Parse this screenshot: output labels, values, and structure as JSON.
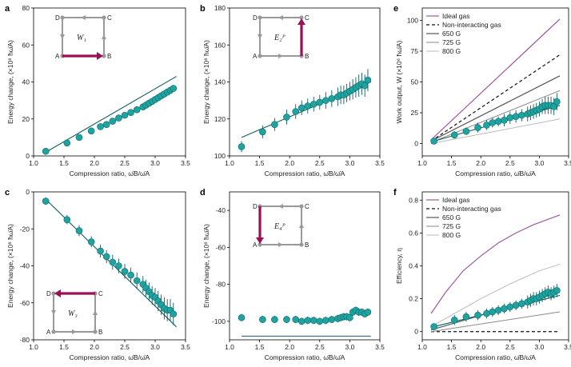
{
  "colors": {
    "marker": "#1fa3a0",
    "markerEdge": "#0e6b69",
    "fit": "#0c5e60",
    "ideal": "#9b5b9e",
    "accent": "#9e0e55",
    "cycle": "#999999"
  },
  "chart_data": [
    {
      "type": "scatter",
      "panel": "a",
      "xlabel": "Compression ratio, ω̄B/ω̄A",
      "ylabel": "Energy change, (×10⁶ ħω̄A)",
      "xlim": [
        1.0,
        3.5
      ],
      "ylim": [
        0,
        80
      ],
      "xticks": [
        "1.0",
        "1.5",
        "2.0",
        "2.5",
        "3.0",
        "3.5"
      ],
      "yticks": [
        "0",
        "20",
        "40",
        "60",
        "80"
      ],
      "cycle_label": "W₁",
      "cycle_arrow": "A-B",
      "x": [
        1.2,
        1.55,
        1.75,
        1.95,
        2.1,
        2.2,
        2.3,
        2.4,
        2.5,
        2.6,
        2.7,
        2.8,
        2.85,
        2.9,
        2.95,
        3.0,
        3.05,
        3.1,
        3.15,
        3.2,
        3.25,
        3.3
      ],
      "y": [
        2.5,
        7,
        10,
        13.5,
        15.8,
        17,
        18.8,
        20.5,
        22,
        23.5,
        25,
        26.5,
        27.5,
        28.5,
        29.5,
        30.5,
        31.5,
        32.5,
        33.5,
        34.5,
        35.5,
        36.5
      ],
      "yerr": [
        1,
        1,
        1,
        1,
        1,
        1,
        1,
        1,
        1,
        1,
        1,
        1,
        1,
        1,
        1,
        1,
        1,
        1,
        1,
        1,
        1,
        1
      ],
      "fit": [
        [
          1.2,
          2
        ],
        [
          3.35,
          43
        ]
      ]
    },
    {
      "type": "scatter",
      "panel": "b",
      "xlabel": "Compression ratio, ω̄B/ω̄A",
      "ylabel": "Energy change, (×10⁶ ħω̄A)",
      "xlim": [
        1.0,
        3.5
      ],
      "ylim": [
        100,
        180
      ],
      "xticks": [
        "1.0",
        "1.5",
        "2.0",
        "2.5",
        "3.0",
        "3.5"
      ],
      "yticks": [
        "100",
        "120",
        "140",
        "160",
        "180"
      ],
      "cycle_label": "E₂ᴾ",
      "cycle_arrow": "B-C",
      "x": [
        1.2,
        1.55,
        1.75,
        1.95,
        2.1,
        2.2,
        2.3,
        2.4,
        2.5,
        2.6,
        2.7,
        2.8,
        2.85,
        2.9,
        2.95,
        3.0,
        3.05,
        3.1,
        3.15,
        3.2,
        3.25,
        3.3
      ],
      "y": [
        105,
        113,
        117,
        121,
        124,
        126,
        127,
        128,
        129,
        130,
        131,
        132,
        133,
        133,
        134,
        135,
        136,
        137,
        138,
        139,
        138,
        141
      ],
      "yerr": [
        3,
        3.5,
        3.5,
        4,
        4,
        4,
        4,
        4,
        4,
        4.5,
        4.5,
        5,
        5,
        5,
        5,
        5,
        5.5,
        5.5,
        6,
        6,
        6,
        6
      ],
      "fit": [
        [
          1.2,
          110
        ],
        [
          3.35,
          140
        ]
      ]
    },
    {
      "type": "scatter",
      "panel": "c",
      "xlabel": "Compression ratio, ω̄B/ω̄A",
      "ylabel": "Energy change, (×10⁶ ħω̄A)",
      "xlim": [
        1.0,
        3.5
      ],
      "ylim": [
        -80,
        0
      ],
      "xticks": [
        "1.0",
        "1.5",
        "2.0",
        "2.5",
        "3.0",
        "3.5"
      ],
      "yticks": [
        "-80",
        "-60",
        "-40",
        "-20",
        "0"
      ],
      "cycle_label": "W₃",
      "cycle_arrow": "C-D",
      "x": [
        1.2,
        1.55,
        1.75,
        1.95,
        2.1,
        2.2,
        2.3,
        2.4,
        2.5,
        2.6,
        2.7,
        2.8,
        2.85,
        2.9,
        2.95,
        3.0,
        3.05,
        3.1,
        3.15,
        3.2,
        3.25,
        3.3
      ],
      "y": [
        -5,
        -15,
        -21,
        -27,
        -32,
        -35,
        -38,
        -40,
        -43,
        -45,
        -48,
        -50,
        -52,
        -54,
        -56,
        -57,
        -59,
        -61,
        -63,
        -64,
        -64,
        -66
      ],
      "yerr": [
        2,
        2.5,
        3,
        3,
        3.5,
        3.5,
        4,
        4,
        4,
        4,
        4.5,
        4.5,
        4.5,
        5,
        5,
        5,
        5.5,
        5.5,
        6,
        6,
        6,
        6
      ],
      "fit": [
        [
          1.2,
          -4
        ],
        [
          3.35,
          -73
        ]
      ]
    },
    {
      "type": "scatter",
      "panel": "d",
      "xlabel": "Compression ratio, ω̄B/ω̄A",
      "ylabel": "Energy change, (×10⁶ ħω̄A)",
      "xlim": [
        1.0,
        3.5
      ],
      "ylim": [
        -110,
        -30
      ],
      "xticks": [
        "1.0",
        "1.5",
        "2.0",
        "2.5",
        "3.0",
        "3.5"
      ],
      "yticks": [
        "-100",
        "-80",
        "-60",
        "-40"
      ],
      "cycle_label": "E₄ᴾ",
      "cycle_arrow": "D-A",
      "x": [
        1.2,
        1.55,
        1.75,
        1.95,
        2.1,
        2.2,
        2.3,
        2.4,
        2.5,
        2.6,
        2.7,
        2.8,
        2.85,
        2.9,
        2.95,
        3.0,
        3.05,
        3.1,
        3.15,
        3.2,
        3.25,
        3.3
      ],
      "y": [
        -98,
        -99,
        -99,
        -99,
        -99,
        -100,
        -99.5,
        -99.5,
        -100,
        -99.5,
        -99,
        -98.5,
        -98,
        -97.5,
        -97.5,
        -98,
        -95,
        -94,
        -95,
        -95,
        -96,
        -95
      ],
      "yerr": [
        2,
        2,
        2,
        2,
        2,
        2,
        2,
        2,
        2,
        2,
        2,
        2,
        2,
        2,
        2,
        2,
        2,
        2,
        2,
        2,
        2,
        2
      ],
      "fit": [
        [
          1.2,
          -108
        ],
        [
          3.35,
          -108
        ]
      ]
    },
    {
      "type": "line",
      "panel": "e",
      "xlabel": "Compression ratio, ω̄B/ω̄A",
      "ylabel": "Work output, W (×10⁶ ħω̄A)",
      "xlim": [
        1.0,
        3.5
      ],
      "ylim": [
        -10,
        110
      ],
      "xticks": [
        "1.0",
        "1.5",
        "2.0",
        "2.5",
        "3.0",
        "3.5"
      ],
      "yticks": [
        "0",
        "25",
        "50",
        "75",
        "100"
      ],
      "legend": [
        "Ideal gas",
        "Non-interacting gas",
        "650 G",
        "725 G",
        "800 G"
      ],
      "series": [
        {
          "name": "Ideal gas",
          "style": "ideal",
          "points": [
            [
              1.15,
              3
            ],
            [
              3.35,
              101
            ]
          ]
        },
        {
          "name": "Non-interacting gas",
          "style": "dash",
          "points": [
            [
              1.15,
              2
            ],
            [
              3.35,
              72
            ]
          ]
        },
        {
          "name": "650 G",
          "style": "g650",
          "points": [
            [
              1.15,
              2
            ],
            [
              3.35,
              55
            ]
          ]
        },
        {
          "name": "725 G",
          "style": "g725",
          "points": [
            [
              1.15,
              1
            ],
            [
              3.35,
              43
            ]
          ]
        },
        {
          "name": "800 G",
          "style": "g800",
          "points": [
            [
              1.15,
              0
            ],
            [
              3.35,
              20
            ]
          ]
        }
      ],
      "x": [
        1.2,
        1.55,
        1.75,
        1.95,
        2.1,
        2.2,
        2.3,
        2.4,
        2.5,
        2.6,
        2.7,
        2.8,
        2.85,
        2.9,
        2.95,
        3.0,
        3.05,
        3.1,
        3.15,
        3.2,
        3.25,
        3.3
      ],
      "y": [
        2,
        7,
        10,
        13,
        15,
        17,
        18,
        19,
        21,
        22,
        23,
        24,
        25,
        26,
        27,
        28,
        30,
        31,
        31,
        31,
        30,
        34
      ],
      "yerr": [
        2,
        3,
        3,
        4,
        4,
        4,
        4,
        5,
        5,
        5,
        5,
        6,
        6,
        6,
        6,
        6,
        6,
        7,
        7,
        7,
        7,
        7
      ],
      "fit": [
        [
          1.2,
          2
        ],
        [
          3.35,
          31
        ]
      ]
    },
    {
      "type": "line",
      "panel": "f",
      "xlabel": "Compression ratio, ω̄B/ω̄A",
      "ylabel": "Efficiency, η",
      "xlim": [
        1.0,
        3.5
      ],
      "ylim": [
        -0.05,
        0.85
      ],
      "xticks": [
        "1.0",
        "1.5",
        "2.0",
        "2.5",
        "3.0",
        "3.5"
      ],
      "yticks": [
        "0",
        "0.2",
        "0.4",
        "0.6",
        "0.8"
      ],
      "legend": [
        "Ideal gas",
        "Non-interacting gas",
        "650 G",
        "725 G",
        "800 G"
      ],
      "series": [
        {
          "name": "Ideal gas",
          "style": "ideal",
          "points": [
            [
              1.15,
              0.11
            ],
            [
              1.4,
              0.24
            ],
            [
              1.7,
              0.37
            ],
            [
              2.0,
              0.46
            ],
            [
              2.3,
              0.54
            ],
            [
              2.6,
              0.6
            ],
            [
              2.9,
              0.65
            ],
            [
              3.35,
              0.71
            ]
          ]
        },
        {
          "name": "Non-interacting gas",
          "style": "dash",
          "points": [
            [
              1.15,
              0.0
            ],
            [
              3.35,
              0.0
            ]
          ]
        },
        {
          "name": "650 G",
          "style": "g650",
          "points": [
            [
              1.15,
              0.01
            ],
            [
              3.35,
              0.24
            ]
          ]
        },
        {
          "name": "725 G",
          "style": "g725",
          "points": [
            [
              1.15,
              0.0
            ],
            [
              3.35,
              0.12
            ]
          ]
        },
        {
          "name": "800 G",
          "style": "g800",
          "points": [
            [
              1.15,
              0.03
            ],
            [
              1.5,
              0.1
            ],
            [
              2.0,
              0.2
            ],
            [
              2.5,
              0.29
            ],
            [
              3.0,
              0.37
            ],
            [
              3.35,
              0.41
            ]
          ]
        }
      ],
      "x": [
        1.2,
        1.55,
        1.75,
        1.95,
        2.1,
        2.2,
        2.3,
        2.4,
        2.5,
        2.6,
        2.7,
        2.8,
        2.85,
        2.9,
        2.95,
        3.0,
        3.05,
        3.1,
        3.15,
        3.2,
        3.25,
        3.3
      ],
      "y": [
        0.03,
        0.07,
        0.09,
        0.1,
        0.11,
        0.12,
        0.13,
        0.14,
        0.15,
        0.16,
        0.17,
        0.18,
        0.19,
        0.2,
        0.2,
        0.21,
        0.22,
        0.23,
        0.24,
        0.23,
        0.24,
        0.25
      ],
      "yerr": [
        0.02,
        0.03,
        0.03,
        0.03,
        0.03,
        0.03,
        0.03,
        0.03,
        0.03,
        0.03,
        0.03,
        0.04,
        0.04,
        0.04,
        0.04,
        0.04,
        0.04,
        0.04,
        0.04,
        0.04,
        0.04,
        0.04
      ],
      "fit": [
        [
          1.2,
          0.03
        ],
        [
          3.35,
          0.22
        ]
      ]
    }
  ]
}
